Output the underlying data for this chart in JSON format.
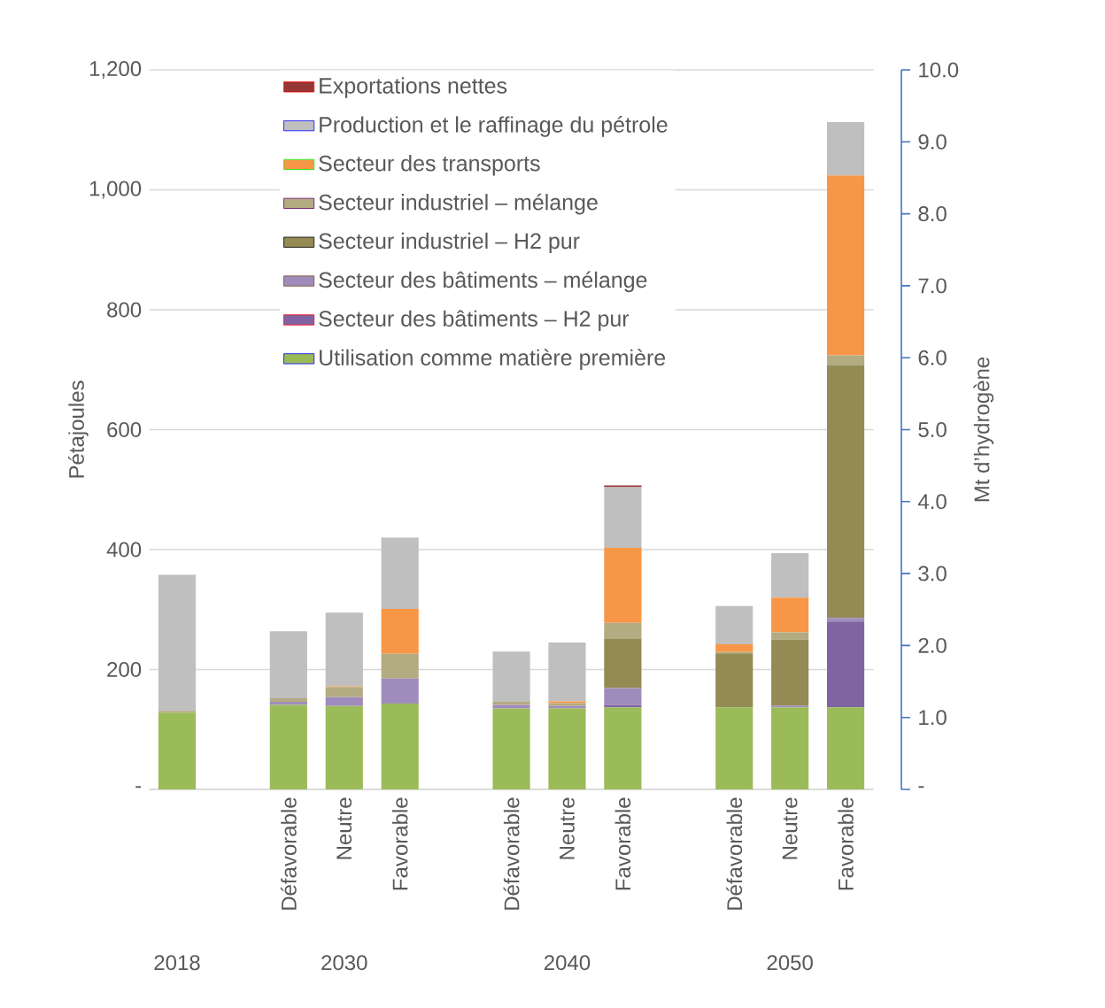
{
  "chart_data": {
    "type": "bar",
    "stacked": true,
    "grid": "y",
    "legend": "top",
    "ylabel": "Pétajoules",
    "y2label": "Mt d’hydrogène",
    "categories": [
      null,
      null,
      "Défavorable",
      "Neutre",
      "Favorable",
      null,
      "Défavorable",
      "Neutre",
      "Favorable",
      null,
      "Défavorable",
      "Neutre",
      "Favorable"
    ],
    "annotations": [
      "2018",
      "2030",
      "2040",
      "2050"
    ],
    "ylim": [
      0,
      1200
    ],
    "yticks": [
      {
        "value": 0,
        "label": "-"
      },
      200,
      400,
      600,
      800,
      {
        "value": 1000,
        "label": "1,000"
      },
      {
        "value": 1200,
        "label": "1,200"
      }
    ],
    "y2lim": [
      0,
      10
    ],
    "y2ticks": [
      {
        "value": 0,
        "label": "-"
      },
      {
        "value": 1,
        "label": "1.0"
      },
      {
        "value": 2,
        "label": "2.0"
      },
      {
        "value": 3,
        "label": "3.0"
      },
      {
        "value": 4,
        "label": "4.0"
      },
      {
        "value": 5,
        "label": "5.0"
      },
      {
        "value": 6,
        "label": "6.0"
      },
      {
        "value": 7,
        "label": "7.0"
      },
      {
        "value": 8,
        "label": "8.0"
      },
      {
        "value": 9,
        "label": "9.0"
      },
      {
        "value": 10,
        "label": "10.0"
      }
    ],
    "series": [
      {
        "name": "Utilisation comme matière première",
        "color": "#9bbb59",
        "values": [
          128,
          null,
          141,
          139,
          143,
          null,
          135,
          135,
          137,
          null,
          137,
          137,
          137
        ]
      },
      {
        "name": "Secteur des bâtiments – H2 pur",
        "color": "#8064a2",
        "values": [
          0,
          null,
          0,
          0,
          0,
          null,
          0,
          0,
          4,
          null,
          0,
          0,
          143
        ]
      },
      {
        "name": "Secteur des bâtiments – mélange",
        "color": "#a08cbc",
        "values": [
          0,
          null,
          5,
          15,
          42,
          null,
          6,
          4,
          28,
          null,
          0,
          3,
          6
        ]
      },
      {
        "name": "Secteur industriel – H2 pur",
        "color": "#948a54",
        "values": [
          0,
          null,
          0,
          0,
          0,
          null,
          0,
          0,
          82,
          null,
          90,
          110,
          421
        ]
      },
      {
        "name": "Secteur industriel – mélange",
        "color": "#b3ab82",
        "values": [
          3,
          null,
          6,
          17,
          41,
          null,
          5,
          5,
          27,
          null,
          2,
          12,
          17
        ]
      },
      {
        "name": "Secteur des transports",
        "color": "#f79646",
        "values": [
          0,
          null,
          0,
          1,
          75,
          null,
          0,
          3,
          125,
          null,
          13,
          58,
          300
        ]
      },
      {
        "name": "Production et le raffinage du pétrole",
        "color": "#bfbfbf",
        "values": [
          227,
          null,
          112,
          123,
          119,
          null,
          84,
          98,
          101,
          null,
          64,
          74,
          89
        ]
      },
      {
        "name": "Exportations nettes",
        "color": "#953735",
        "values": [
          0,
          null,
          0,
          0,
          0,
          null,
          0,
          0,
          3,
          null,
          0,
          0,
          0
        ]
      }
    ]
  }
}
